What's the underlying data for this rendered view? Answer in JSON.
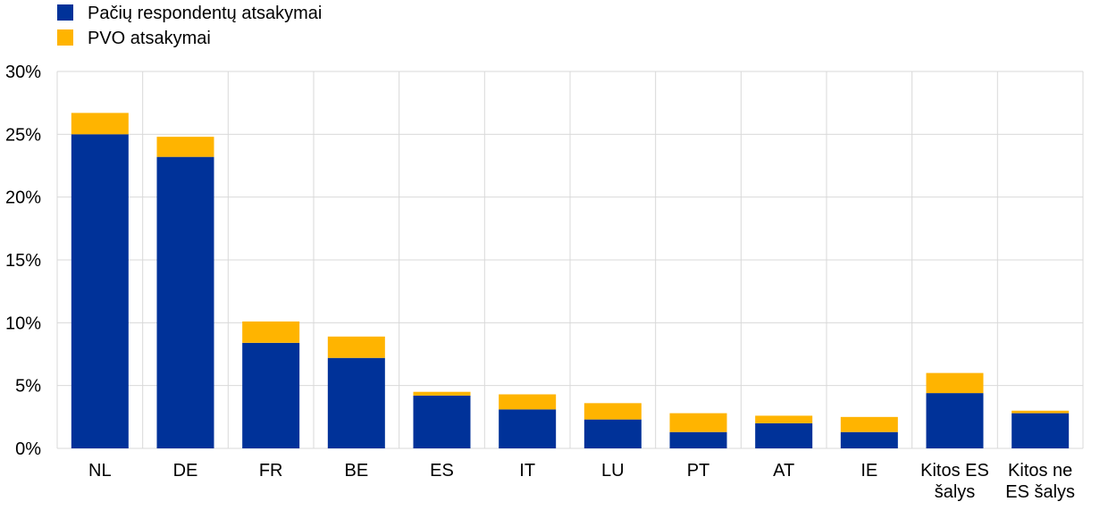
{
  "chart_data": {
    "type": "bar",
    "stacked": true,
    "categories": [
      [
        "NL"
      ],
      [
        "DE"
      ],
      [
        "FR"
      ],
      [
        "BE"
      ],
      [
        "ES"
      ],
      [
        "IT"
      ],
      [
        "LU"
      ],
      [
        "PT"
      ],
      [
        "AT"
      ],
      [
        "IE"
      ],
      [
        "Kitos ES",
        "šalys"
      ],
      [
        "Kitos ne",
        "ES šalys"
      ]
    ],
    "series": [
      {
        "name": "Pačių respondentų atsakymai",
        "color": "#003299",
        "values": [
          25.0,
          23.2,
          8.4,
          7.2,
          4.2,
          3.1,
          2.3,
          1.3,
          2.0,
          1.3,
          4.4,
          2.8
        ]
      },
      {
        "name": "PVO atsakymai",
        "color": "#FFB400",
        "values": [
          1.7,
          1.6,
          1.7,
          1.7,
          0.3,
          1.2,
          1.3,
          1.5,
          0.6,
          1.2,
          1.6,
          0.2
        ]
      }
    ],
    "ylim": [
      0,
      30
    ],
    "yticks": [
      0,
      5,
      10,
      15,
      20,
      25,
      30
    ],
    "ytick_labels": [
      "0%",
      "5%",
      "10%",
      "15%",
      "20%",
      "25%",
      "30%"
    ],
    "legend_position": "top-left",
    "grid": true
  }
}
